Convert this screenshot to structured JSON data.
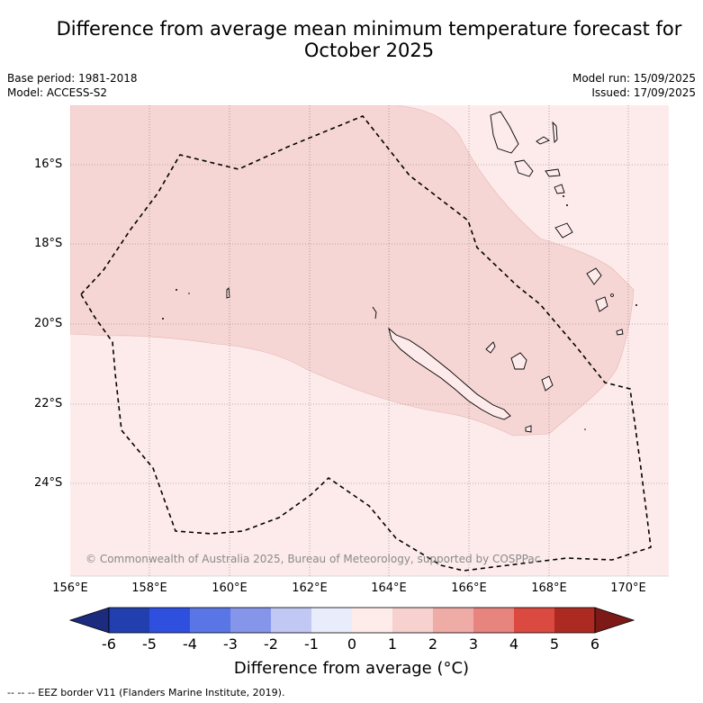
{
  "title_line1": "Difference from average mean minimum temperature forecast for",
  "title_line2": "October 2025",
  "base_period": "Base period: 1981-2018",
  "model": "Model: ACCESS-S2",
  "model_run": "Model run: 15/09/2025",
  "issued": "Issued: 17/09/2025",
  "credit": "© Commonwealth of Australia 2025, Bureau of Meteorology, supported by COSPPac",
  "lat_labels": [
    "16°S",
    "18°S",
    "20°S",
    "22°S",
    "24°S"
  ],
  "lon_labels": [
    "156°E",
    "158°E",
    "160°E",
    "162°E",
    "164°E",
    "166°E",
    "168°E",
    "170°E"
  ],
  "colorbar": {
    "ticks": [
      "-6",
      "-5",
      "-4",
      "-3",
      "-2",
      "-1",
      "0",
      "1",
      "2",
      "3",
      "4",
      "5",
      "6"
    ],
    "colors": [
      "#1c2b7e",
      "#223fb0",
      "#2f4fdf",
      "#5a75e6",
      "#8596ea",
      "#c0c8f3",
      "#e9ecfa",
      "#fdecea",
      "#f6d1ce",
      "#efaca7",
      "#e6847d",
      "#db4a40",
      "#ad2a22",
      "#7d1a17"
    ],
    "title": "Difference from average (°C)"
  },
  "footer": "--  --  -- EEZ border V11 (Flanders Marine Institute, 2019)."
}
